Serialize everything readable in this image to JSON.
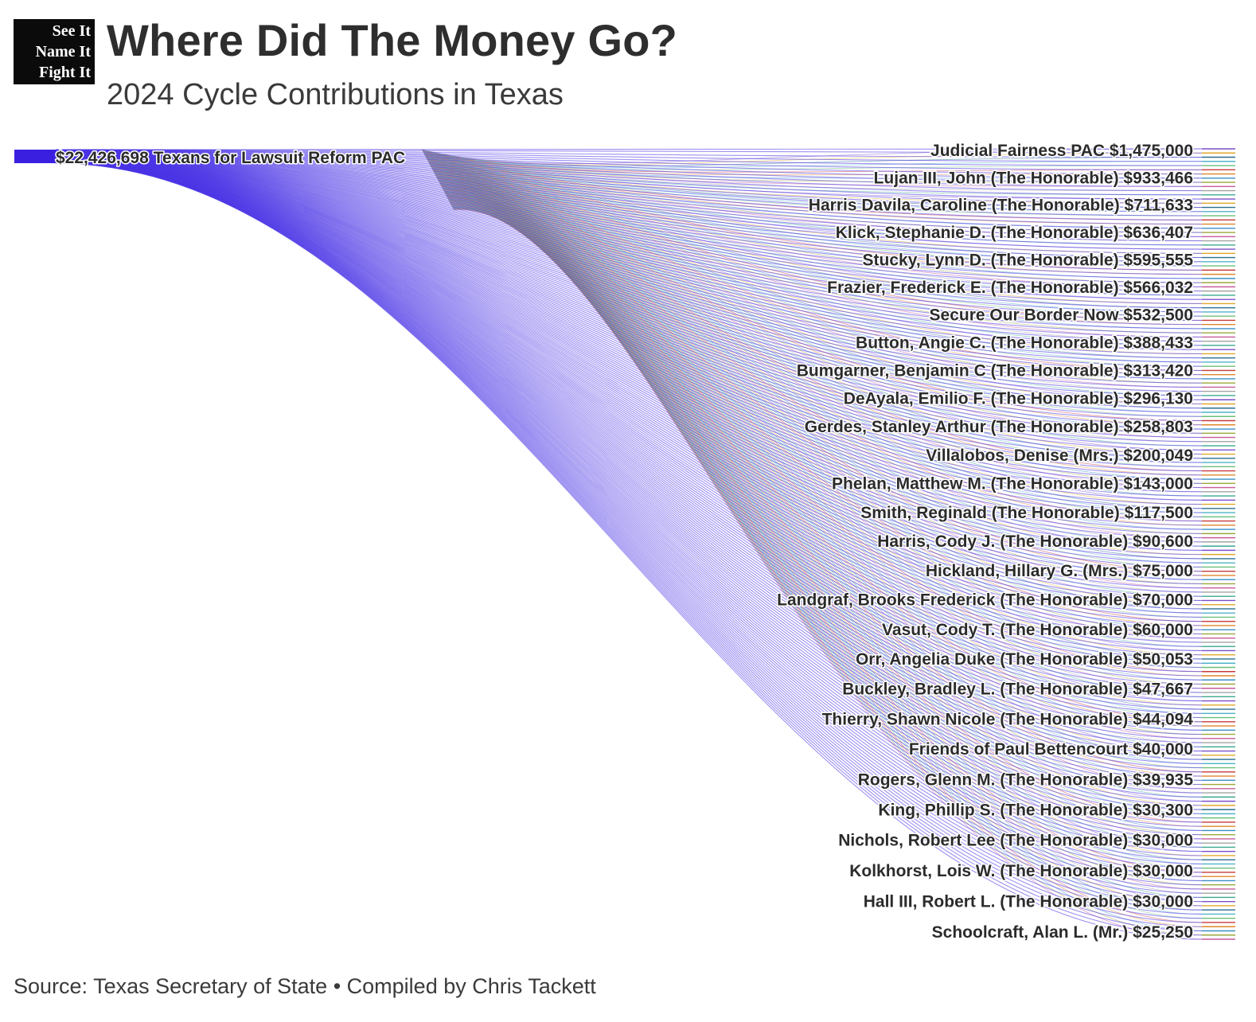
{
  "logo": {
    "line1": "See It",
    "line2": "Name It",
    "line3": "Fight It"
  },
  "title": "Where Did The Money Go?",
  "subtitle": "2024 Cycle Contributions in Texas",
  "source": "Source: Texas Secretary of State • Compiled by Chris Tackett",
  "colors": {
    "source_node": "#3b1fe0",
    "flow_band": "#4a35e6",
    "text": "#2b2b2b",
    "recipient_palette": [
      "#7b4fc9",
      "#e0a92a",
      "#2a6f8f",
      "#4fb3c8",
      "#6bbf7a",
      "#c63a3a",
      "#e0852a",
      "#3a8fc6",
      "#9aa83a",
      "#c65a9a",
      "#a3a3a3",
      "#3aa88f"
    ]
  },
  "chart_data": {
    "type": "sankey",
    "source": {
      "name": "Texans for Lawsuit Reform PAC",
      "value": 22426698,
      "label": "$22,426,698 Texans for Lawsuit Reform PAC"
    },
    "labeled_recipients": [
      {
        "name": "Judicial Fairness PAC",
        "value": 1475000,
        "label": "Judicial Fairness PAC $1,475,000"
      },
      {
        "name": "Lujan III, John (The Honorable)",
        "value": 933466,
        "label": "Lujan III, John (The Honorable) $933,466"
      },
      {
        "name": "Harris Davila, Caroline (The Honorable)",
        "value": 711633,
        "label": "Harris Davila, Caroline (The Honorable) $711,633"
      },
      {
        "name": "Klick, Stephanie D. (The Honorable)",
        "value": 636407,
        "label": "Klick, Stephanie D. (The Honorable) $636,407"
      },
      {
        "name": "Stucky, Lynn D. (The Honorable)",
        "value": 595555,
        "label": "Stucky, Lynn D. (The Honorable) $595,555"
      },
      {
        "name": "Frazier, Frederick E. (The Honorable)",
        "value": 566032,
        "label": "Frazier, Frederick E. (The Honorable) $566,032"
      },
      {
        "name": "Secure Our Border Now",
        "value": 532500,
        "label": "Secure Our Border Now $532,500"
      },
      {
        "name": "Button, Angie C. (The Honorable)",
        "value": 388433,
        "label": "Button, Angie C. (The Honorable) $388,433"
      },
      {
        "name": "Bumgarner, Benjamin C (The Honorable)",
        "value": 313420,
        "label": "Bumgarner, Benjamin C (The Honorable) $313,420"
      },
      {
        "name": "DeAyala, Emilio F. (The Honorable)",
        "value": 296130,
        "label": "DeAyala, Emilio F. (The Honorable) $296,130"
      },
      {
        "name": "Gerdes, Stanley Arthur (The Honorable)",
        "value": 258803,
        "label": "Gerdes, Stanley Arthur (The Honorable) $258,803"
      },
      {
        "name": "Villalobos, Denise (Mrs.)",
        "value": 200049,
        "label": "Villalobos, Denise (Mrs.) $200,049"
      },
      {
        "name": "Phelan, Matthew M. (The Honorable)",
        "value": 143000,
        "label": "Phelan, Matthew M. (The Honorable) $143,000"
      },
      {
        "name": "Smith, Reginald (The Honorable)",
        "value": 117500,
        "label": "Smith, Reginald (The Honorable) $117,500"
      },
      {
        "name": "Harris, Cody J. (The Honorable)",
        "value": 90600,
        "label": "Harris, Cody J. (The Honorable) $90,600"
      },
      {
        "name": "Hickland, Hillary G. (Mrs.)",
        "value": 75000,
        "label": "Hickland, Hillary G. (Mrs.) $75,000"
      },
      {
        "name": "Landgraf, Brooks Frederick (The Honorable)",
        "value": 70000,
        "label": "Landgraf, Brooks Frederick (The Honorable) $70,000"
      },
      {
        "name": "Vasut, Cody T. (The Honorable)",
        "value": 60000,
        "label": "Vasut, Cody T. (The Honorable) $60,000"
      },
      {
        "name": "Orr, Angelia Duke (The Honorable)",
        "value": 50053,
        "label": "Orr, Angelia Duke (The Honorable) $50,053"
      },
      {
        "name": "Buckley, Bradley L. (The Honorable)",
        "value": 47667,
        "label": "Buckley, Bradley L. (The Honorable) $47,667"
      },
      {
        "name": "Thierry, Shawn Nicole (The Honorable)",
        "value": 44094,
        "label": "Thierry, Shawn Nicole (The Honorable) $44,094"
      },
      {
        "name": "Friends of Paul Bettencourt",
        "value": 40000,
        "label": "Friends of Paul Bettencourt $40,000"
      },
      {
        "name": "Rogers, Glenn M. (The Honorable)",
        "value": 39935,
        "label": "Rogers, Glenn M. (The Honorable) $39,935"
      },
      {
        "name": "King, Phillip S. (The Honorable)",
        "value": 30300,
        "label": "King, Phillip S. (The Honorable) $30,300"
      },
      {
        "name": "Nichols, Robert Lee (The Honorable)",
        "value": 30000,
        "label": "Nichols, Robert Lee (The Honorable) $30,000"
      },
      {
        "name": "Kolkhorst, Lois W. (The Honorable)",
        "value": 30000,
        "label": "Kolkhorst, Lois W. (The Honorable) $30,000"
      },
      {
        "name": "Hall III, Robert L. (The Honorable)",
        "value": 30000,
        "label": "Hall III, Robert L. (The Honorable) $30,000"
      },
      {
        "name": "Schoolcraft, Alan L. (Mr.)",
        "value": 25250,
        "label": "Schoolcraft, Alan L. (Mr.) $25,250"
      }
    ]
  }
}
